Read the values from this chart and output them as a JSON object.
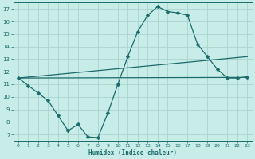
{
  "xlabel": "Humidex (Indice chaleur)",
  "xlim": [
    -0.5,
    23.5
  ],
  "ylim": [
    6.5,
    17.5
  ],
  "yticks": [
    7,
    8,
    9,
    10,
    11,
    12,
    13,
    14,
    15,
    16,
    17
  ],
  "xticks": [
    0,
    1,
    2,
    3,
    4,
    5,
    6,
    7,
    8,
    9,
    10,
    11,
    12,
    13,
    14,
    15,
    16,
    17,
    18,
    19,
    20,
    21,
    22,
    23
  ],
  "bg_color": "#c8ece8",
  "grid_color": "#aad4ce",
  "line_color": "#1a6b6b",
  "curve1_x": [
    0,
    1,
    2,
    3,
    4,
    5,
    6,
    7,
    8,
    9,
    10,
    11,
    12,
    13,
    14,
    15,
    16,
    17,
    18,
    19,
    20,
    21,
    22,
    23
  ],
  "curve1_y": [
    11.5,
    10.9,
    10.3,
    9.7,
    8.5,
    7.3,
    7.8,
    6.8,
    6.75,
    8.7,
    11.0,
    13.2,
    15.2,
    16.5,
    17.2,
    16.8,
    16.7,
    16.5,
    14.2,
    13.2,
    12.2,
    11.5,
    11.5,
    11.6
  ],
  "curve2_x": [
    0,
    23
  ],
  "curve2_y": [
    11.5,
    11.55
  ],
  "curve3_x": [
    0,
    23
  ],
  "curve3_y": [
    11.5,
    13.2
  ]
}
